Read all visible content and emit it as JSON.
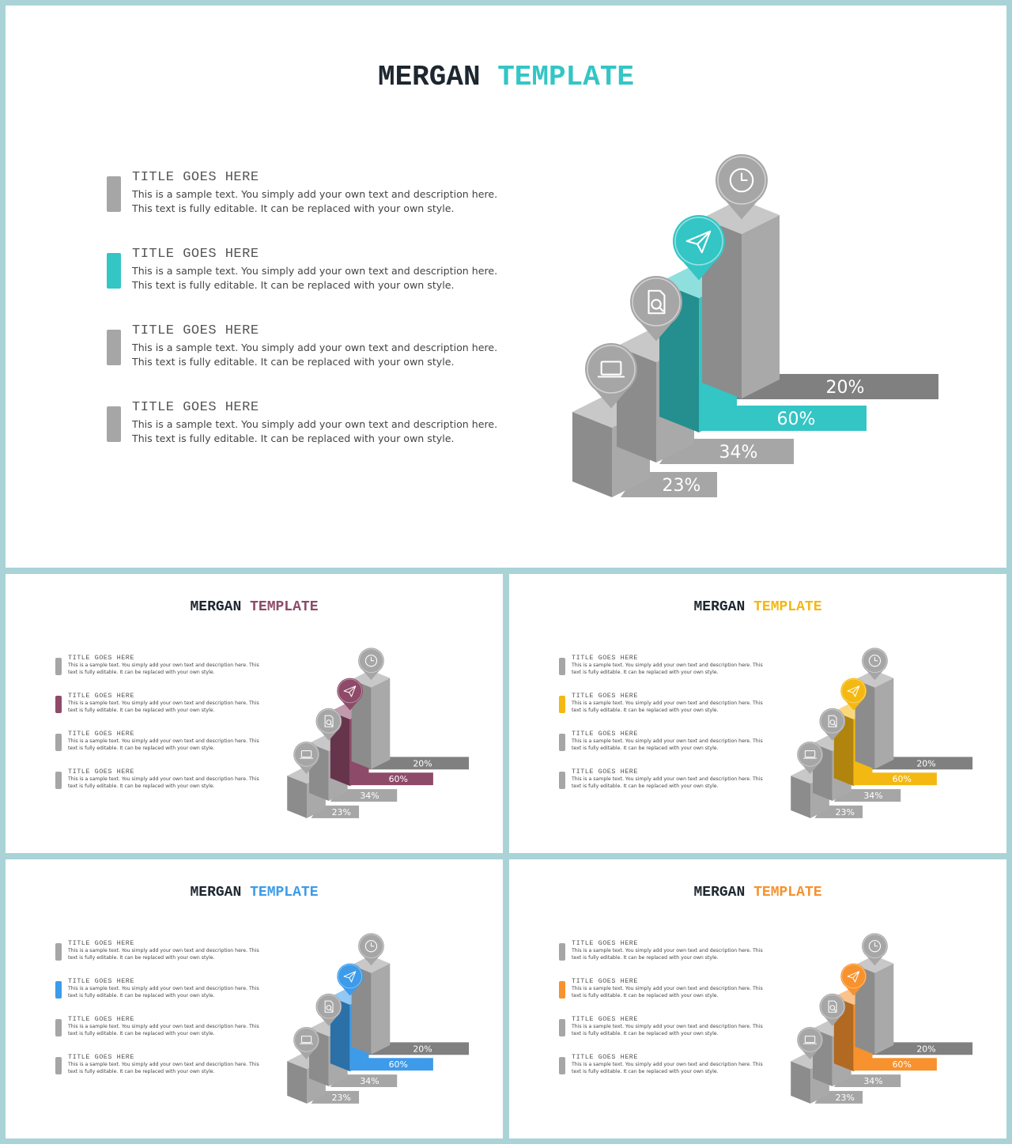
{
  "colors": {
    "grey_bar": "#a6a6a6",
    "dark_text": "#1e2730"
  },
  "slides": [
    {
      "title_part1": "MERGAN",
      "title_part2": "TEMPLATE",
      "accent": "#34c5c5",
      "items": [
        {
          "title": "TITLE GOES HERE",
          "desc": "This is a sample text. You simply add your own text and description here. This text is fully editable. It can be replaced with your own style."
        },
        {
          "title": "TITLE GOES HERE",
          "desc": "This is a sample text. You simply add your own text and description here. This text is fully editable. It can be replaced with your own style."
        },
        {
          "title": "TITLE GOES HERE",
          "desc": "This is a sample text. You simply add your own text and description here. This text is fully editable. It can be replaced with your own style."
        },
        {
          "title": "TITLE GOES HERE",
          "desc": "This is a sample text. You simply add your own text and description here. This text is fully editable. It can be replaced with your own style."
        }
      ],
      "chart_data": {
        "type": "bar",
        "categories": [
          "laptop-icon",
          "document-search-icon",
          "paper-plane-icon",
          "clock-icon"
        ],
        "values": [
          23,
          34,
          60,
          20
        ],
        "labels": [
          "23%",
          "34%",
          "60%",
          "20%"
        ],
        "highlight_index": 2
      }
    },
    {
      "title_part1": "MERGAN",
      "title_part2": "TEMPLATE",
      "accent": "#8e4a69",
      "items": [
        {
          "title": "TITLE GOES HERE",
          "desc": "This is a sample text. You simply add your own text and description here. This text is fully editable. It can be replaced with your own style."
        },
        {
          "title": "TITLE GOES HERE",
          "desc": "This is a sample text. You simply add your own text and description here. This text is fully editable. It can be replaced with your own style."
        },
        {
          "title": "TITLE GOES HERE",
          "desc": "This is a sample text. You simply add your own text and description here. This text is fully editable. It can be replaced with your own style."
        },
        {
          "title": "TITLE GOES HERE",
          "desc": "This is a sample text. You simply add your own text and description here. This text is fully editable. It can be replaced with your own style."
        }
      ],
      "chart_data": {
        "type": "bar",
        "categories": [
          "laptop-icon",
          "document-search-icon",
          "paper-plane-icon",
          "clock-icon"
        ],
        "values": [
          23,
          34,
          60,
          20
        ],
        "labels": [
          "23%",
          "34%",
          "60%",
          "20%"
        ],
        "highlight_index": 2
      }
    },
    {
      "title_part1": "MERGAN",
      "title_part2": "TEMPLATE",
      "accent": "#f4b812",
      "items": [
        {
          "title": "TITLE GOES HERE",
          "desc": "This is a sample text. You simply add your own text and description here. This text is fully editable. It can be replaced with your own style."
        },
        {
          "title": "TITLE GOES HERE",
          "desc": "This is a sample text. You simply add your own text and description here. This text is fully editable. It can be replaced with your own style."
        },
        {
          "title": "TITLE GOES HERE",
          "desc": "This is a sample text. You simply add your own text and description here. This text is fully editable. It can be replaced with your own style."
        },
        {
          "title": "TITLE GOES HERE",
          "desc": "This is a sample text. You simply add your own text and description here. This text is fully editable. It can be replaced with your own style."
        }
      ],
      "chart_data": {
        "type": "bar",
        "categories": [
          "laptop-icon",
          "document-search-icon",
          "paper-plane-icon",
          "clock-icon"
        ],
        "values": [
          23,
          34,
          60,
          20
        ],
        "labels": [
          "23%",
          "34%",
          "60%",
          "20%"
        ],
        "highlight_index": 2
      }
    },
    {
      "title_part1": "MERGAN",
      "title_part2": "TEMPLATE",
      "accent": "#3d9be9",
      "items": [
        {
          "title": "TITLE GOES HERE",
          "desc": "This is a sample text. You simply add your own text and description here. This text is fully editable. It can be replaced with your own style."
        },
        {
          "title": "TITLE GOES HERE",
          "desc": "This is a sample text. You simply add your own text and description here. This text is fully editable. It can be replaced with your own style."
        },
        {
          "title": "TITLE GOES HERE",
          "desc": "This is a sample text. You simply add your own text and description here. This text is fully editable. It can be replaced with your own style."
        },
        {
          "title": "TITLE GOES HERE",
          "desc": "This is a sample text. You simply add your own text and description here. This text is fully editable. It can be replaced with your own style."
        }
      ],
      "chart_data": {
        "type": "bar",
        "categories": [
          "laptop-icon",
          "document-search-icon",
          "paper-plane-icon",
          "clock-icon"
        ],
        "values": [
          23,
          34,
          60,
          20
        ],
        "labels": [
          "23%",
          "34%",
          "60%",
          "20%"
        ],
        "highlight_index": 2
      }
    },
    {
      "title_part1": "MERGAN",
      "title_part2": "TEMPLATE",
      "accent": "#f7922e",
      "items": [
        {
          "title": "TITLE GOES HERE",
          "desc": "This is a sample text. You simply add your own text and description here. This text is fully editable. It can be replaced with your own style."
        },
        {
          "title": "TITLE GOES HERE",
          "desc": "This is a sample text. You simply add your own text and description here. This text is fully editable. It can be replaced with your own style."
        },
        {
          "title": "TITLE GOES HERE",
          "desc": "This is a sample text. You simply add your own text and description here. This text is fully editable. It can be replaced with your own style."
        },
        {
          "title": "TITLE GOES HERE",
          "desc": "This is a sample text. You simply add your own text and description here. This text is fully editable. It can be replaced with your own style."
        }
      ],
      "chart_data": {
        "type": "bar",
        "categories": [
          "laptop-icon",
          "document-search-icon",
          "paper-plane-icon",
          "clock-icon"
        ],
        "values": [
          23,
          34,
          60,
          20
        ],
        "labels": [
          "23%",
          "34%",
          "60%",
          "20%"
        ],
        "highlight_index": 2
      }
    }
  ]
}
